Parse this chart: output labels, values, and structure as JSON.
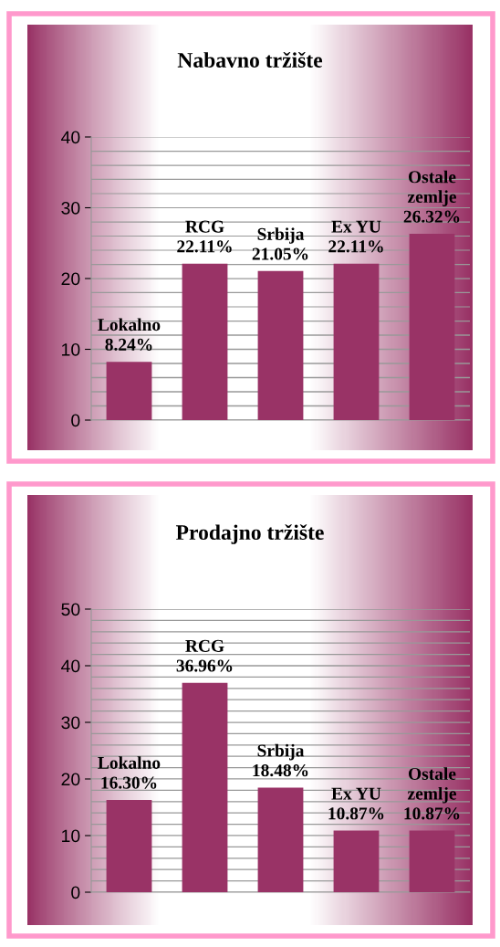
{
  "chart_data": [
    {
      "type": "bar",
      "title": "Nabavno tržište",
      "categories": [
        "Lokalno",
        "RCG",
        "Srbija",
        "Ex YU",
        "Ostale zemlje"
      ],
      "values": [
        8.24,
        22.11,
        21.05,
        22.11,
        26.32
      ],
      "value_labels": [
        "8.24%",
        "22.11%",
        "21.05%",
        "22.11%",
        "26.32%"
      ],
      "color": "#993366",
      "ylim": [
        0,
        40
      ],
      "yticks": [
        0,
        10,
        20,
        30,
        40
      ],
      "grid": "y",
      "tick_labels": "y",
      "legend": false
    },
    {
      "type": "bar",
      "title": "Prodajno tržište",
      "categories": [
        "Lokalno",
        "RCG",
        "Srbija",
        "Ex YU",
        "Ostale zemlje"
      ],
      "values": [
        16.3,
        36.96,
        18.48,
        10.87,
        10.87
      ],
      "value_labels": [
        "16.30%",
        "36.96%",
        "18.48%",
        "10.87%",
        "10.87%"
      ],
      "color": "#993366",
      "ylim": [
        0,
        50
      ],
      "yticks": [
        0,
        10,
        20,
        30,
        40,
        50
      ],
      "grid": "y",
      "tick_labels": "y",
      "legend": false
    }
  ]
}
